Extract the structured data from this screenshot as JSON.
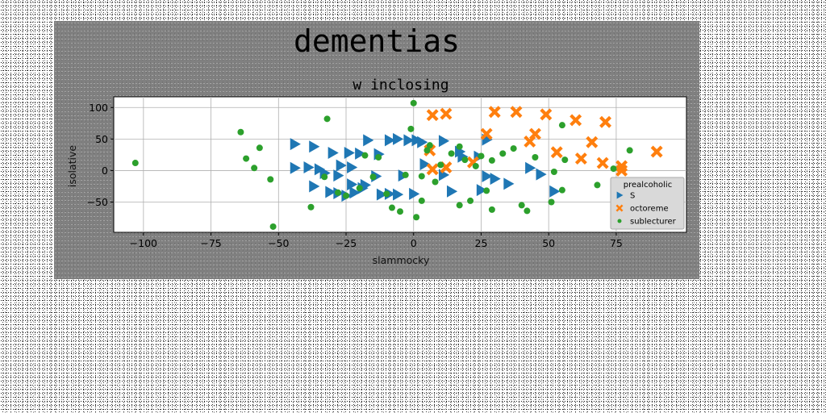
{
  "chart_data": {
    "type": "scatter",
    "suptitle": "dementias",
    "title": "w inclosing",
    "xlabel": "slammocky",
    "ylabel": "isolative",
    "xlim": [
      -111,
      101
    ],
    "ylim": [
      -98,
      117
    ],
    "xticks": [
      -100,
      -75,
      -50,
      -25,
      0,
      25,
      50,
      75
    ],
    "yticks": [
      -50,
      0,
      50,
      100
    ],
    "grid": true,
    "legend": {
      "title": "prealcoholic",
      "position": "lower right"
    },
    "series": [
      {
        "name": "S",
        "marker": "triangle-right",
        "color": "#1f77b4",
        "points": [
          [
            -44,
            42
          ],
          [
            -37,
            38
          ],
          [
            -30,
            28
          ],
          [
            -24,
            28
          ],
          [
            -20,
            27
          ],
          [
            -17,
            48
          ],
          [
            -13,
            26
          ],
          [
            -9,
            48
          ],
          [
            -6,
            50
          ],
          [
            -2,
            48
          ],
          [
            1,
            48
          ],
          [
            3,
            45
          ],
          [
            11,
            47
          ],
          [
            17,
            30
          ],
          [
            24,
            22
          ],
          [
            27,
            49
          ],
          [
            -44,
            4
          ],
          [
            -39,
            5
          ],
          [
            -35,
            2
          ],
          [
            -33,
            -4
          ],
          [
            -28,
            -8
          ],
          [
            -37,
            -25
          ],
          [
            -31,
            -34
          ],
          [
            -28,
            -36
          ],
          [
            -25,
            -40
          ],
          [
            -22,
            -35
          ],
          [
            -19,
            -28
          ],
          [
            -23,
            -22
          ],
          [
            -18,
            -23
          ],
          [
            -14,
            -9
          ],
          [
            -12,
            -38
          ],
          [
            -9,
            -37
          ],
          [
            -6,
            -38
          ],
          [
            -4,
            -8
          ],
          [
            0,
            -37
          ],
          [
            4,
            10
          ],
          [
            11,
            -7
          ],
          [
            14,
            -33
          ],
          [
            18,
            22
          ],
          [
            25,
            -31
          ],
          [
            27,
            -9
          ],
          [
            30,
            -13
          ],
          [
            35,
            -21
          ],
          [
            43,
            4
          ],
          [
            47,
            -6
          ],
          [
            52,
            -33
          ],
          [
            -27,
            8
          ],
          [
            -23,
            5
          ]
        ]
      },
      {
        "name": "octoreme",
        "marker": "x",
        "color": "#ff7f0e",
        "points": [
          [
            7,
            88
          ],
          [
            12,
            90
          ],
          [
            30,
            93
          ],
          [
            38,
            93
          ],
          [
            49,
            89
          ],
          [
            60,
            80
          ],
          [
            71,
            77
          ],
          [
            27,
            58
          ],
          [
            45,
            58
          ],
          [
            43,
            46
          ],
          [
            66,
            45
          ],
          [
            53,
            29
          ],
          [
            90,
            30
          ],
          [
            62,
            19
          ],
          [
            70,
            12
          ],
          [
            77,
            7
          ],
          [
            77,
            0
          ],
          [
            22,
            13
          ],
          [
            7,
            2
          ],
          [
            12,
            5
          ],
          [
            6,
            32
          ]
        ]
      },
      {
        "name": "sublecturer",
        "marker": "circle",
        "color": "#2ca02c",
        "points": [
          [
            -103,
            12
          ],
          [
            -64,
            61
          ],
          [
            -62,
            19
          ],
          [
            -59,
            4
          ],
          [
            -57,
            36
          ],
          [
            -53,
            -14
          ],
          [
            -52,
            -89
          ],
          [
            -38,
            -58
          ],
          [
            -33,
            -10
          ],
          [
            -32,
            82
          ],
          [
            -28,
            -35
          ],
          [
            -25,
            -40
          ],
          [
            -20,
            -28
          ],
          [
            -18,
            24
          ],
          [
            -15,
            -10
          ],
          [
            -13,
            21
          ],
          [
            -10,
            -37
          ],
          [
            -8,
            -59
          ],
          [
            -5,
            -65
          ],
          [
            -3,
            -7
          ],
          [
            -1,
            66
          ],
          [
            0,
            107
          ],
          [
            1,
            -74
          ],
          [
            3,
            -48
          ],
          [
            3,
            -9
          ],
          [
            5,
            32
          ],
          [
            6,
            40
          ],
          [
            8,
            -18
          ],
          [
            10,
            9
          ],
          [
            14,
            27
          ],
          [
            17,
            38
          ],
          [
            17,
            -55
          ],
          [
            19,
            17
          ],
          [
            21,
            -48
          ],
          [
            23,
            7
          ],
          [
            25,
            23
          ],
          [
            27,
            -32
          ],
          [
            29,
            16
          ],
          [
            29,
            -62
          ],
          [
            33,
            27
          ],
          [
            37,
            35
          ],
          [
            40,
            -55
          ],
          [
            42,
            -64
          ],
          [
            45,
            21
          ],
          [
            51,
            -50
          ],
          [
            55,
            72
          ],
          [
            55,
            -31
          ],
          [
            56,
            17
          ],
          [
            68,
            -23
          ],
          [
            74,
            3
          ],
          [
            80,
            32
          ],
          [
            52,
            -2
          ]
        ]
      }
    ]
  },
  "legend_markers": {
    "S": "triangle-right",
    "octoreme": "x",
    "sublecturer": "circle"
  }
}
